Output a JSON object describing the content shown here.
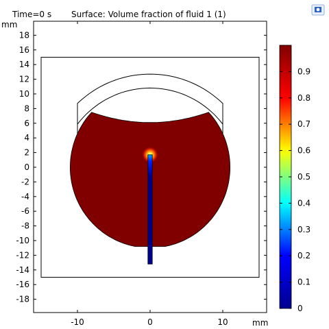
{
  "header": {
    "time_label": "Time=0 s",
    "surface_label": "Surface: Volume fraction of fluid 1 (1)",
    "corner_icon": "camera-icon"
  },
  "chart_data": {
    "type": "heatmap",
    "title": "Surface: Volume fraction of fluid 1 (1)",
    "time": "Time=0 s",
    "xlabel": "mm",
    "ylabel": "mm",
    "xlim": [
      -16,
      15
    ],
    "ylim": [
      -20.5,
      20.5
    ],
    "x_ticks": [
      -10,
      0,
      10
    ],
    "y_ticks": [
      18,
      16,
      14,
      12,
      10,
      8,
      6,
      4,
      2,
      0,
      -2,
      -4,
      -6,
      -8,
      -10,
      -12,
      -14,
      -16,
      -18
    ],
    "colorbar": {
      "min": 0,
      "max": 1,
      "ticks": [
        0,
        0.1,
        0.2,
        0.3,
        0.4,
        0.5,
        0.6,
        0.7,
        0.8,
        0.9
      ],
      "colormap": [
        "#00008f",
        "#0000ff",
        "#00ffff",
        "#ffff00",
        "#ff0000",
        "#800000"
      ]
    },
    "geometry": {
      "domain_rect": {
        "x": [
          -15,
          15
        ],
        "y": [
          -15,
          15
        ]
      },
      "droplet": {
        "cx": 0,
        "cy": 0,
        "r": 11,
        "flat_top_y": 7.5,
        "flat_bottom_y": -10.8,
        "value": 1
      },
      "needle": {
        "x": [
          -0.3,
          0.3
        ],
        "y": [
          -13.2,
          1.7
        ],
        "value": 0
      },
      "lens": {
        "outer_r": 14.5,
        "inner_r": 12.6,
        "center_y": -1.8,
        "x_span": [
          -10,
          10
        ],
        "value": null
      }
    },
    "field_values": {
      "droplet": 1,
      "needle": 0,
      "tip_gradient": "0 to 1"
    }
  }
}
